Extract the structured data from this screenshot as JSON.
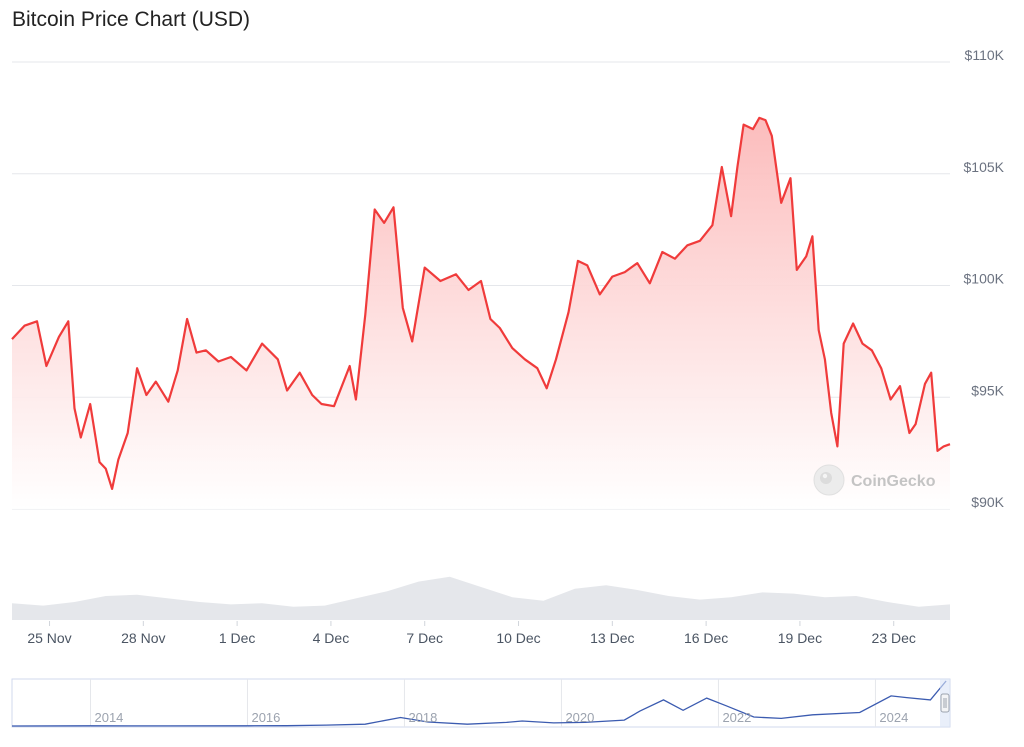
{
  "header": {
    "title": "Bitcoin Price Chart (USD)"
  },
  "watermark": {
    "text": "CoinGecko"
  },
  "colors": {
    "line": "#f03b3b",
    "fill_top": "#fcb9b9",
    "fill_bottom": "#ffffff",
    "volume": "#e5e7eb",
    "navigator_line": "#3b5bb0",
    "grid": "#e5e7eb"
  },
  "chart_data": [
    {
      "type": "area",
      "title": "Bitcoin Price Chart (USD)",
      "xlabel": "",
      "ylabel": "",
      "ylim": [
        90000,
        110000
      ],
      "y_ticks": [
        {
          "value": 110000,
          "label": "$110K"
        },
        {
          "value": 105000,
          "label": "$105K"
        },
        {
          "value": 100000,
          "label": "$100K"
        },
        {
          "value": 95000,
          "label": "$95K"
        },
        {
          "value": 90000,
          "label": "$90K"
        }
      ],
      "x_range": [
        0,
        30
      ],
      "x_ticks": [
        {
          "pos": 1.2,
          "label": "25 Nov"
        },
        {
          "pos": 4.2,
          "label": "28 Nov"
        },
        {
          "pos": 7.2,
          "label": "1 Dec"
        },
        {
          "pos": 10.2,
          "label": "4 Dec"
        },
        {
          "pos": 13.2,
          "label": "7 Dec"
        },
        {
          "pos": 16.2,
          "label": "10 Dec"
        },
        {
          "pos": 19.2,
          "label": "13 Dec"
        },
        {
          "pos": 22.2,
          "label": "16 Dec"
        },
        {
          "pos": 25.2,
          "label": "19 Dec"
        },
        {
          "pos": 28.2,
          "label": "23 Dec"
        }
      ],
      "grid": true,
      "series": [
        {
          "x": [
            0,
            0.4,
            0.8,
            1.1,
            1.5,
            1.8,
            2.0,
            2.2,
            2.5,
            2.8,
            3.0,
            3.2,
            3.4,
            3.7,
            4.0,
            4.3,
            4.6,
            5.0,
            5.3,
            5.6,
            5.9,
            6.2,
            6.6,
            7.0,
            7.5,
            8.0,
            8.5,
            8.8,
            9.2,
            9.6,
            9.9,
            10.3,
            10.8,
            11.0,
            11.3,
            11.6,
            11.9,
            12.2,
            12.5,
            12.8,
            13.2,
            13.7,
            14.2,
            14.6,
            15.0,
            15.3,
            15.6,
            16.0,
            16.4,
            16.8,
            17.1,
            17.4,
            17.8,
            18.1,
            18.4,
            18.8,
            19.2,
            19.6,
            20.0,
            20.4,
            20.8,
            21.2,
            21.6,
            22.0,
            22.4,
            22.7,
            23.0,
            23.2,
            23.4,
            23.7,
            23.9,
            24.1,
            24.3,
            24.6,
            24.9,
            25.1,
            25.4,
            25.6,
            25.8,
            26.0,
            26.2,
            26.4,
            26.6,
            26.9,
            27.2,
            27.5,
            27.8,
            28.1,
            28.4,
            28.7,
            28.9,
            29.2,
            29.4,
            29.6,
            29.8,
            30.0
          ],
          "y": [
            97600,
            98200,
            98400,
            96400,
            97700,
            98400,
            94500,
            93200,
            94700,
            92100,
            91800,
            90900,
            92200,
            93400,
            96300,
            95100,
            95700,
            94800,
            96200,
            98500,
            97000,
            97100,
            96600,
            96800,
            96200,
            97400,
            96700,
            95300,
            96100,
            95100,
            94700,
            94600,
            96400,
            94900,
            98700,
            103400,
            102800,
            103500,
            99000,
            97500,
            100800,
            100200,
            100500,
            99800,
            100200,
            98500,
            98100,
            97200,
            96700,
            96300,
            95400,
            96700,
            98800,
            101100,
            100900,
            99600,
            100400,
            100600,
            101000,
            100100,
            101500,
            101200,
            101800,
            102000,
            102700,
            105300,
            103100,
            105300,
            107200,
            107000,
            107500,
            107400,
            106700,
            103700,
            104800,
            100700,
            101300,
            102200,
            98000,
            96700,
            94300,
            92800,
            97400,
            98300,
            97400,
            97100,
            96300,
            94900,
            95500,
            93400,
            93800,
            95600,
            96100,
            92600,
            92800,
            92900
          ]
        }
      ]
    },
    {
      "type": "bar",
      "title": "",
      "x_range": [
        0,
        30
      ],
      "values": [
        0.28,
        0.24,
        0.3,
        0.4,
        0.42,
        0.36,
        0.3,
        0.26,
        0.28,
        0.22,
        0.24,
        0.36,
        0.48,
        0.64,
        0.72,
        0.55,
        0.38,
        0.32,
        0.52,
        0.58,
        0.5,
        0.4,
        0.34,
        0.38,
        0.46,
        0.44,
        0.38,
        0.4,
        0.3,
        0.22,
        0.26
      ]
    },
    {
      "type": "line",
      "title": "",
      "x": [
        2013,
        2014,
        2015,
        2016,
        2016.5,
        2017,
        2017.5,
        2017.95,
        2018.3,
        2018.8,
        2019.3,
        2019.5,
        2019.9,
        2020.3,
        2020.8,
        2021.0,
        2021.3,
        2021.55,
        2021.85,
        2022.1,
        2022.45,
        2022.8,
        2023.2,
        2023.8,
        2024.2,
        2024.4,
        2024.7,
        2024.9
      ],
      "y": [
        0.1,
        0.4,
        0.3,
        0.5,
        0.7,
        2,
        4,
        19,
        9,
        4,
        8,
        11,
        7,
        8,
        13,
        33,
        58,
        35,
        62,
        45,
        20,
        17,
        25,
        30,
        67,
        63,
        58,
        100
      ],
      "x_ticks": [
        2014,
        2016,
        2018,
        2020,
        2022,
        2024
      ],
      "x_tick_labels": [
        "2014",
        "2016",
        "2018",
        "2020",
        "2022",
        "2024"
      ]
    }
  ]
}
